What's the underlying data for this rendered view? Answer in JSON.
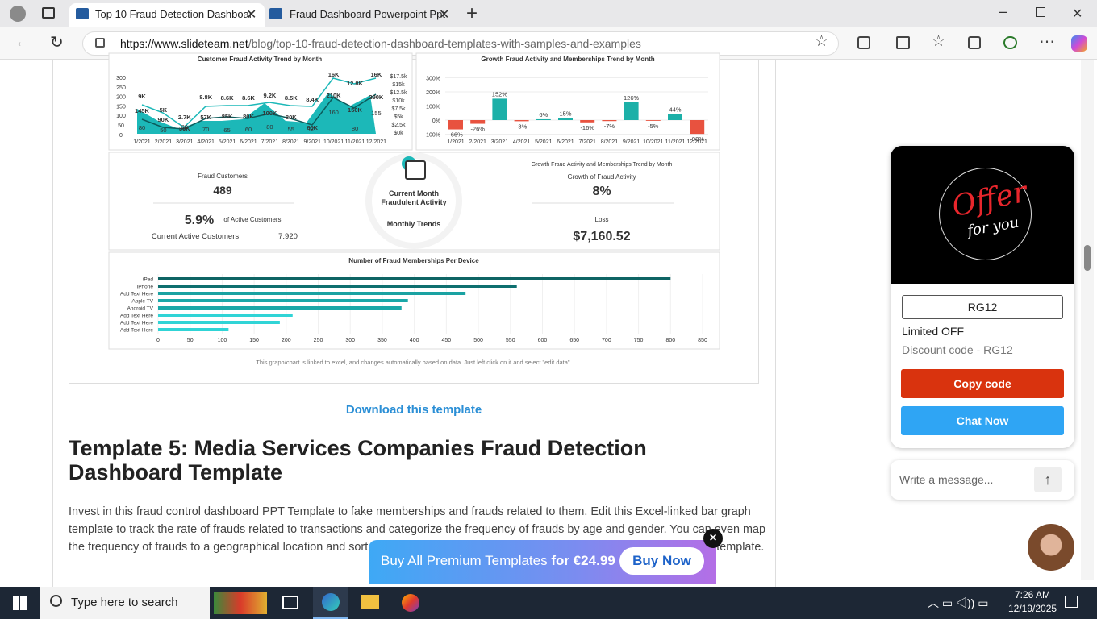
{
  "browser": {
    "tabs": [
      "Top 10 Fraud Detection Dashboar",
      "Fraud Dashboard Powerpoint Ppt"
    ],
    "url_host": "https://www.slideteam.net",
    "url_path": "/blog/top-10-fraud-detection-dashboard-templates-with-samples-and-examples"
  },
  "dashboard": {
    "chart1_title": "Customer Fraud Activity Trend by Month",
    "chart2_title": "Growth Fraud Activity and Memberships Trend by Month",
    "months": [
      "1/2021",
      "2/2021",
      "3/2021",
      "4/2021",
      "5/2021",
      "6/2021",
      "7/2021",
      "8/2021",
      "9/2021",
      "10/2021",
      "11/2021",
      "12/2021"
    ],
    "chart1_left_ticks": [
      "300",
      "250",
      "200",
      "150",
      "100",
      "50",
      "0"
    ],
    "chart1_right_ticks": [
      "$17.5k",
      "$15k",
      "$12.5k",
      "$10k",
      "$7.5k",
      "$5k",
      "$2.5k",
      "$0k"
    ],
    "chart1_top_labels": [
      "9K",
      "5K",
      "2.7K",
      "8.8K",
      "8.6K",
      "8.6K",
      "9.2K",
      "8.5K",
      "8.4K",
      "16K",
      "12.8K",
      "16K"
    ],
    "chart1_mid_labels": [
      "145K",
      "90K",
      "30K",
      "57K",
      "85K",
      "80K",
      "100K",
      "80K",
      "60K",
      "210K",
      "150K",
      "290K"
    ],
    "chart1_low_labels": [
      "80",
      "50",
      "30",
      "70",
      "65",
      "60",
      "80",
      "55",
      "60",
      "160",
      "80",
      "155"
    ],
    "chart2_ticks": [
      300,
      200,
      100,
      0,
      -100
    ],
    "chart2_tick_labels": [
      "300%",
      "200%",
      "100%",
      "0%",
      "-100%"
    ],
    "growth_values": [
      -66,
      -26,
      152,
      -8,
      6,
      15,
      -16,
      -7,
      126,
      -5,
      44,
      -98
    ],
    "growth_value_labels": [
      "-66%",
      "-26%",
      "152%",
      "-8%",
      "6%",
      "15%",
      "-16%",
      "-7%",
      "126%",
      "-5%",
      "44%",
      "-98%"
    ],
    "fraud_customers_label": "Fraud Customers",
    "fraud_customers": "489",
    "active_pct": "5.9%",
    "active_pct_label": "of Active Customers",
    "current_active_label": "Current Active Customers",
    "current_active": "7.920",
    "center_title": "Current Month Fraudulent Activity",
    "center_sub": "Monthly Trends",
    "kpi_right_title": "Growth Fraud Activity  and Memberships Trend by Month",
    "growth_label": "Growth of Fraud Activity",
    "growth": "8%",
    "loss_label": "Loss",
    "loss": "$7,160.52",
    "chart3_title": "Number of Fraud Memberships Per Device",
    "devices": [
      "iPad",
      "iPhone",
      "Add Text Here",
      "Apple TV",
      "Android TV",
      "Add Text Here",
      "Add Text Here",
      "Add Text Here"
    ],
    "device_values": [
      800,
      560,
      480,
      390,
      380,
      210,
      190,
      110
    ],
    "xlim": [
      0,
      850
    ],
    "xticks": [
      0,
      50,
      100,
      150,
      200,
      250,
      300,
      350,
      400,
      450,
      500,
      550,
      600,
      650,
      700,
      750,
      800,
      850
    ],
    "caption": "This graph/chart is linked to excel, and changes automatically based on data. Just left click on it and select \"edit data\"."
  },
  "article": {
    "download": "Download this template",
    "heading": "Template 5: Media Services Companies Fraud Detection Dashboard Template",
    "paragraph": "Invest in this fraud control dashboard PPT Template to fake memberships and frauds related to them. Edit this Excel-linked bar graph template to track the rate of frauds related to transactions and categorize the frequency of frauds by age and gender. You can even map the frequency of frauds to a geographical location and sort it by region. Go ahead and invest in this fraud detection dashboard template."
  },
  "banner": {
    "text": "Buy All Premium Templates",
    "price": "for €24.99",
    "button": "Buy Now"
  },
  "chat": {
    "offer": "Offer",
    "for_you": "for you",
    "code_box": "RG12",
    "limited": "Limited OFF",
    "discount": "Discount code - RG12",
    "copy": "Copy code",
    "chat_now": "Chat Now",
    "placeholder": "Write a message..."
  },
  "taskbar": {
    "search": "Type here to search",
    "time": "7:26 AM",
    "date": "12/19/2025"
  }
}
